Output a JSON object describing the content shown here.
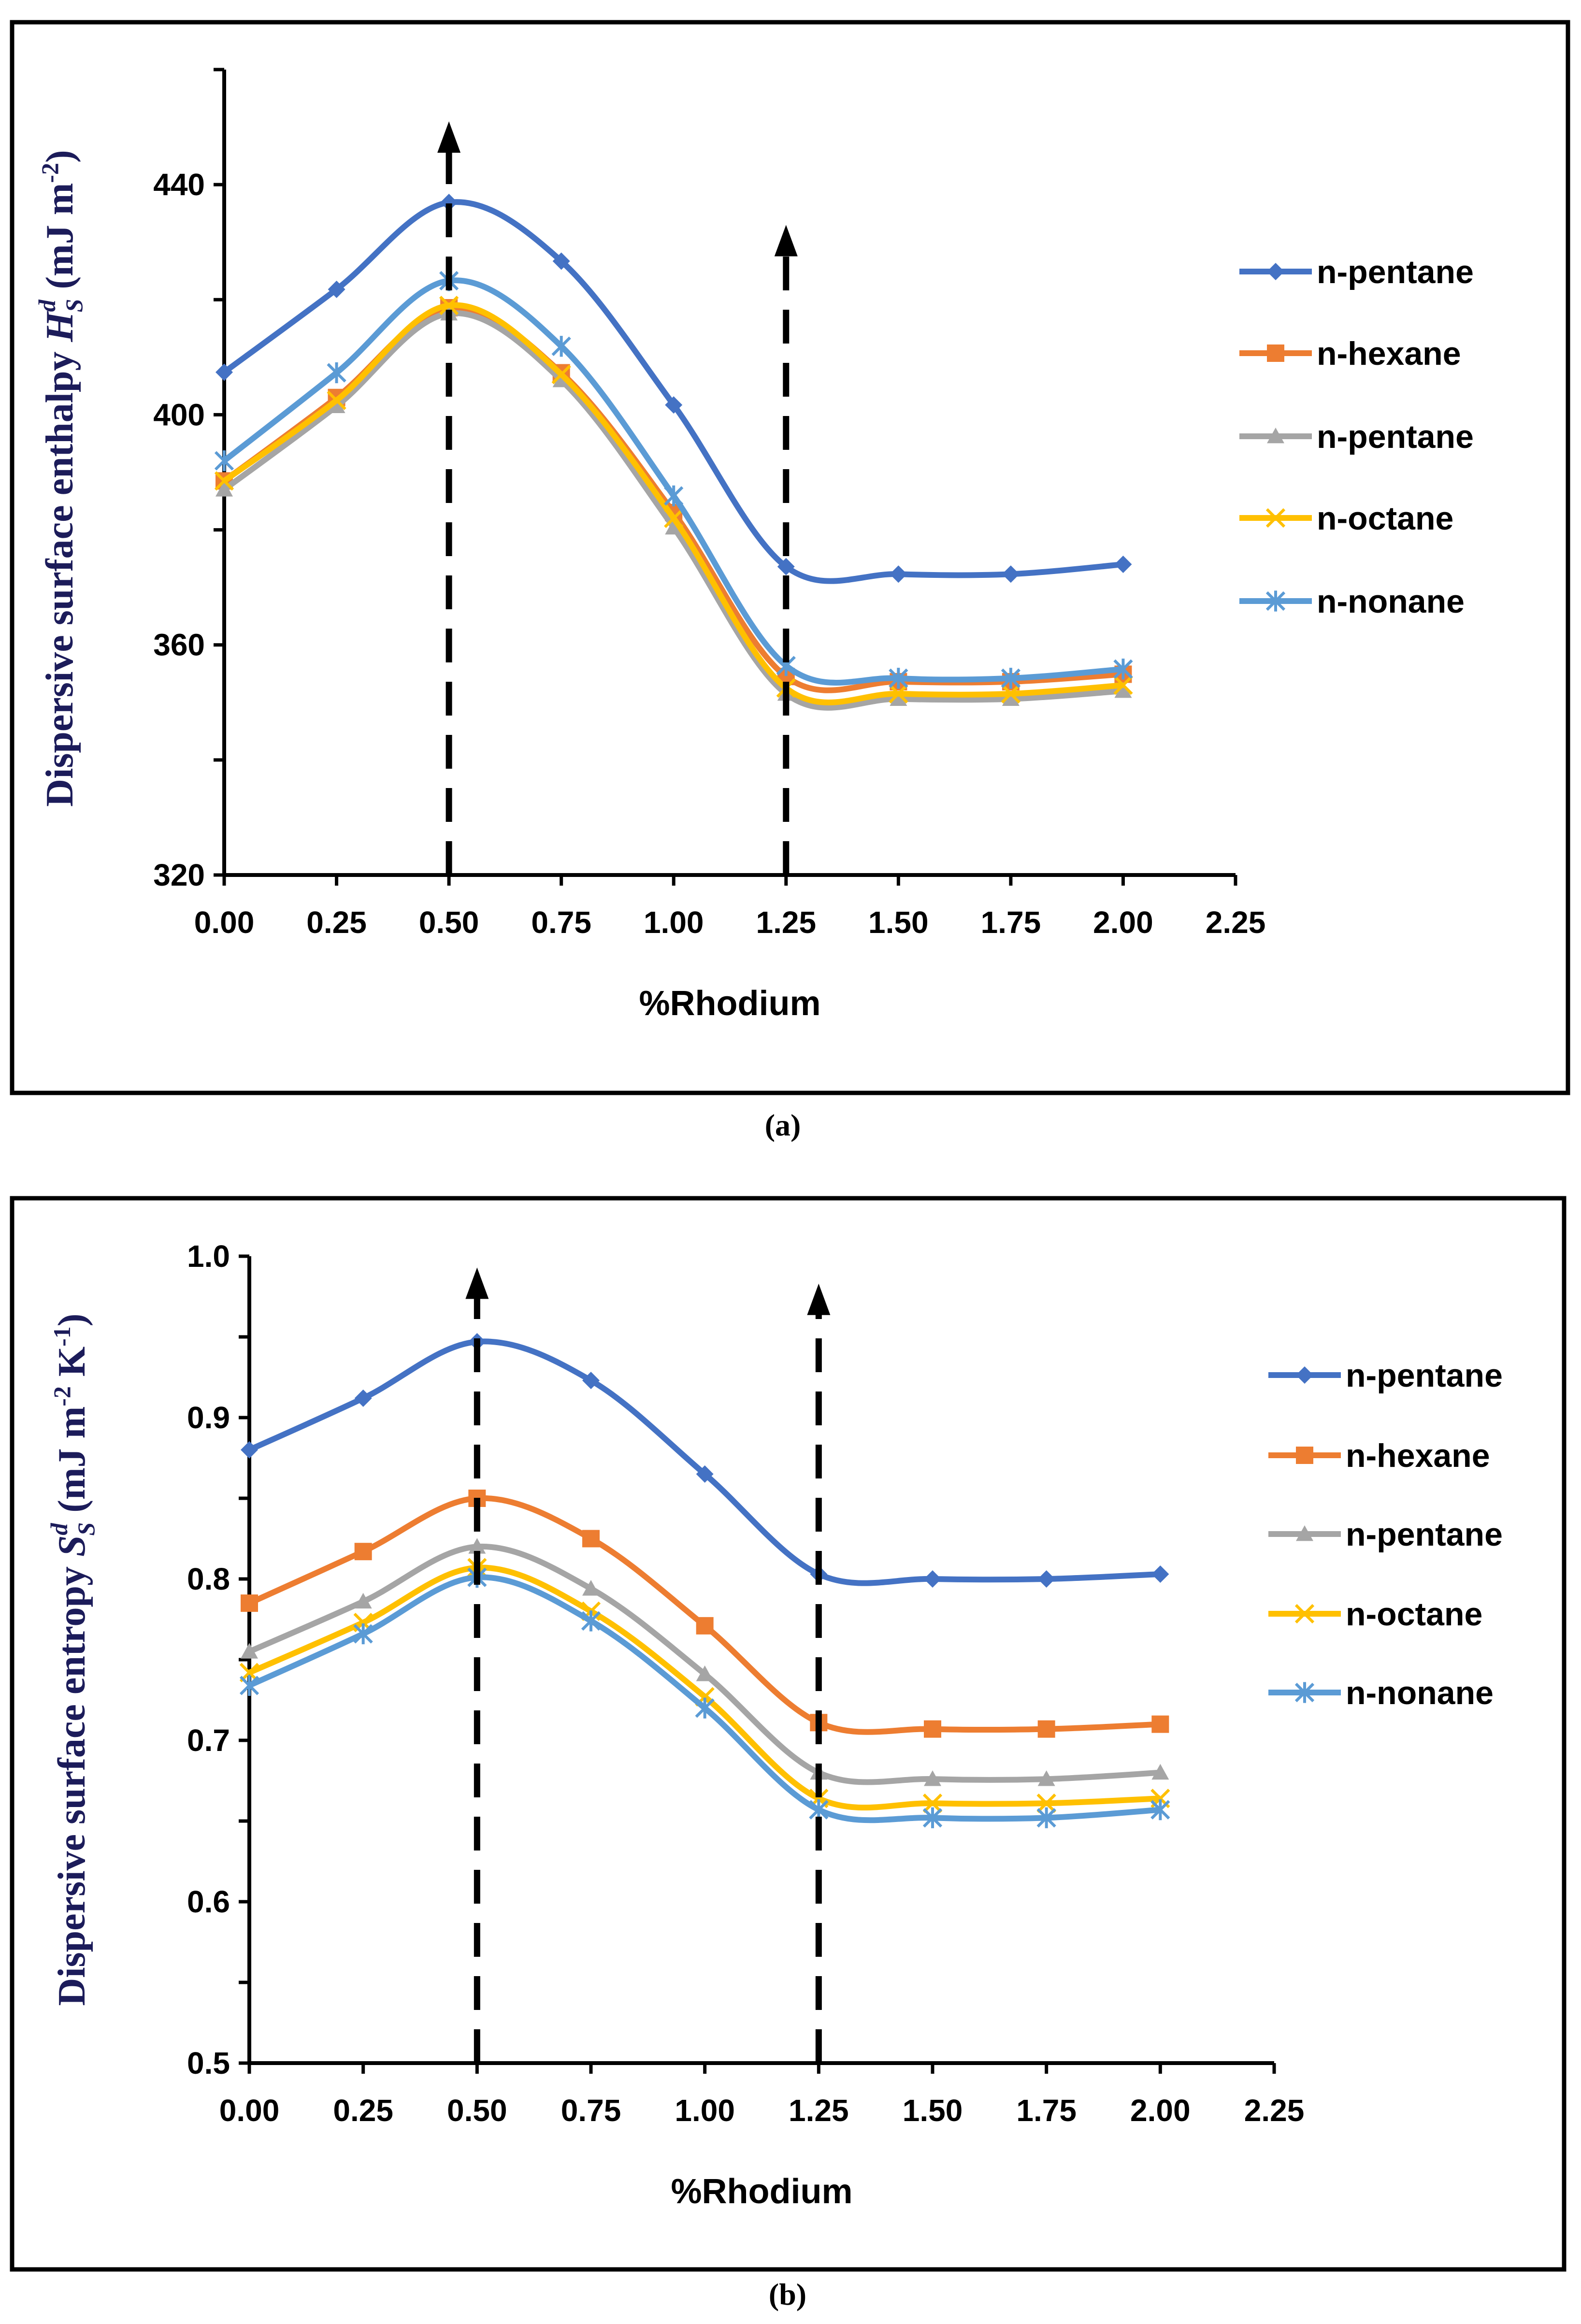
{
  "chart_data": [
    {
      "type": "line",
      "panel": "(a)",
      "caption": "(a)",
      "xlabel": "%Rhodium",
      "ylabel": {
        "text": "Dispersive surface enthalpy ",
        "symbol": "H",
        "sub": "S",
        "sup": "d",
        "unit": " (mJ m",
        "unit_sup": "-2",
        "unit_end": ")"
      },
      "x": [
        0,
        0.25,
        0.5,
        0.75,
        1.0,
        1.25,
        1.5,
        1.75,
        2.0
      ],
      "xticks": [
        "0.00",
        "0.25",
        "0.50",
        "0.75",
        "1.00",
        "1.25",
        "1.50",
        "1.75",
        "2.00",
        "2.25"
      ],
      "xlim": [
        0,
        2.25
      ],
      "yticks": [
        "320",
        "360",
        "400",
        "440"
      ],
      "ytick_values": [
        320,
        360,
        400,
        440
      ],
      "ylim": [
        320,
        460
      ],
      "legend_position": "right",
      "arrows": [
        {
          "x": 0.5,
          "y_top": 451
        },
        {
          "x": 1.25,
          "y_top": 433
        }
      ],
      "series": [
        {
          "name": "n-pentane",
          "color": "#4472C4",
          "marker": "diamond",
          "values": [
            407.4,
            421.8,
            436.9,
            426.7,
            401.7,
            373.6,
            372.3,
            372.3,
            374.0
          ]
        },
        {
          "name": "n-hexane",
          "color": "#ED7D31",
          "marker": "square",
          "values": [
            388.5,
            403.0,
            418.6,
            407.3,
            383.0,
            354.5,
            353.6,
            353.6,
            354.9
          ]
        },
        {
          "name": "n-pentane",
          "color": "#A5A5A5",
          "marker": "triangle",
          "values": [
            387.0,
            401.5,
            417.6,
            406.0,
            380.4,
            351.5,
            350.6,
            350.6,
            352.0
          ]
        },
        {
          "name": "n-octane",
          "color": "#FFC000",
          "marker": "x",
          "values": [
            388.5,
            402.5,
            419.0,
            407.0,
            382.0,
            352.5,
            351.5,
            351.5,
            353.0
          ]
        },
        {
          "name": "n-nonane",
          "color": "#5B9BD5",
          "marker": "asterisk",
          "values": [
            392.0,
            407.3,
            423.3,
            411.9,
            385.9,
            356.4,
            354.2,
            354.2,
            355.8
          ]
        }
      ]
    },
    {
      "type": "line",
      "panel": "(b)",
      "caption": "(b)",
      "xlabel": "%Rhodium",
      "ylabel": {
        "text": "Dispersive surface entropy ",
        "symbol": "S",
        "sub": "S",
        "sup": "d",
        "unit": " (mJ m",
        "unit_sup": "-2",
        "unit_end": " K",
        "unit_sup2": "-1",
        "unit_close": ")"
      },
      "x": [
        0,
        0.25,
        0.5,
        0.75,
        1.0,
        1.25,
        1.5,
        1.75,
        2.0
      ],
      "xticks": [
        "0.00",
        "0.25",
        "0.50",
        "0.75",
        "1.00",
        "1.25",
        "1.50",
        "1.75",
        "2.00",
        "2.25"
      ],
      "xlim": [
        0,
        2.25
      ],
      "yticks": [
        "0.5",
        "0.6",
        "0.7",
        "0.8",
        "0.9",
        "1.0"
      ],
      "ytick_values": [
        0.5,
        0.6,
        0.7,
        0.8,
        0.9,
        1.0
      ],
      "ylim": [
        0.5,
        1.0
      ],
      "legend_position": "right",
      "arrows": [
        {
          "x": 0.5,
          "y_top": 0.993
        },
        {
          "x": 1.25,
          "y_top": 0.983
        }
      ],
      "series": [
        {
          "name": "n-pentane",
          "color": "#4472C4",
          "marker": "diamond",
          "values": [
            0.88,
            0.912,
            0.947,
            0.923,
            0.865,
            0.803,
            0.8,
            0.8,
            0.803
          ]
        },
        {
          "name": "n-hexane",
          "color": "#ED7D31",
          "marker": "square",
          "values": [
            0.785,
            0.817,
            0.85,
            0.825,
            0.771,
            0.711,
            0.707,
            0.707,
            0.71
          ]
        },
        {
          "name": "n-pentane",
          "color": "#A5A5A5",
          "marker": "triangle",
          "values": [
            0.755,
            0.786,
            0.82,
            0.794,
            0.741,
            0.68,
            0.676,
            0.676,
            0.68
          ]
        },
        {
          "name": "n-octane",
          "color": "#FFC000",
          "marker": "x",
          "values": [
            0.742,
            0.773,
            0.807,
            0.78,
            0.727,
            0.664,
            0.661,
            0.661,
            0.664
          ]
        },
        {
          "name": "n-nonane",
          "color": "#5B9BD5",
          "marker": "asterisk",
          "values": [
            0.734,
            0.766,
            0.801,
            0.774,
            0.72,
            0.657,
            0.652,
            0.652,
            0.657
          ]
        }
      ]
    }
  ]
}
